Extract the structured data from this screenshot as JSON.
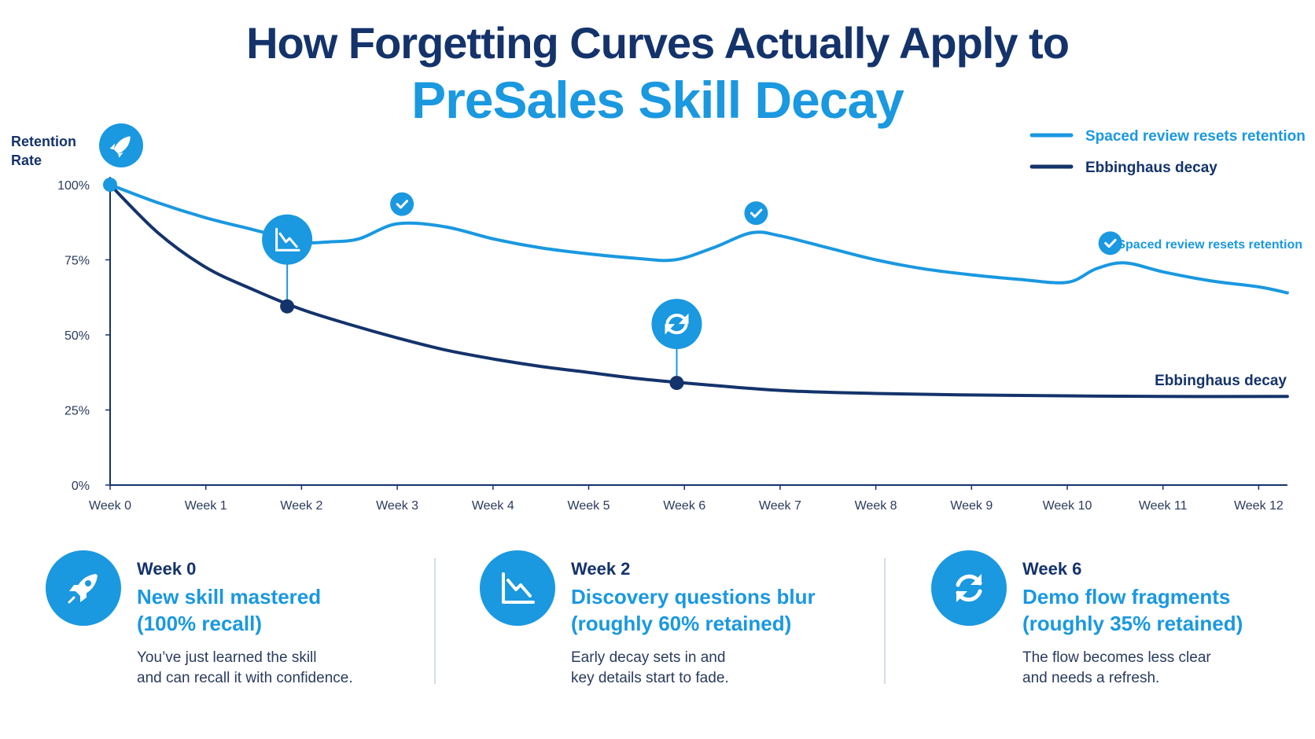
{
  "title": {
    "line1": "How Forgetting Curves Actually Apply to",
    "line2": "PreSales Skill Decay"
  },
  "colors": {
    "navy": "#14336b",
    "blue": "#1a98e0",
    "grid": "#d5dde8"
  },
  "chart_data": {
    "type": "line",
    "ylabel_line1": "Retention",
    "ylabel_line2": "Rate",
    "ylim": [
      0,
      100
    ],
    "y_ticks": [
      "100%",
      "75%",
      "50%",
      "25%",
      "0%"
    ],
    "y_tick_values": [
      100,
      75,
      50,
      25,
      0
    ],
    "categories": [
      "Week 0",
      "Week 1",
      "Week 2",
      "Week 3",
      "Week 4",
      "Week 5",
      "Week 6",
      "Week 7",
      "Week 8",
      "Week 9",
      "Week 10",
      "Week 11",
      "Week 12"
    ],
    "grid": false,
    "legend_position": "top-right",
    "series": [
      {
        "name": "Spaced review resets retention",
        "color": "#1a98e0",
        "points": [
          [
            0,
            100
          ],
          [
            0.5,
            94
          ],
          [
            1,
            89
          ],
          [
            1.5,
            85
          ],
          [
            2,
            81
          ],
          [
            2.3,
            81
          ],
          [
            2.6,
            82
          ],
          [
            3,
            87
          ],
          [
            3.5,
            86
          ],
          [
            4,
            82
          ],
          [
            4.5,
            79
          ],
          [
            5,
            77
          ],
          [
            5.5,
            75.5
          ],
          [
            5.9,
            75
          ],
          [
            6.3,
            79
          ],
          [
            6.7,
            84
          ],
          [
            7,
            83
          ],
          [
            7.5,
            79
          ],
          [
            8,
            75
          ],
          [
            8.5,
            72
          ],
          [
            9,
            70
          ],
          [
            9.5,
            68.5
          ],
          [
            10,
            67.5
          ],
          [
            10.3,
            72
          ],
          [
            10.6,
            74
          ],
          [
            11,
            71
          ],
          [
            11.5,
            68
          ],
          [
            12,
            66
          ],
          [
            12.3,
            64
          ]
        ]
      },
      {
        "name": "Ebbinghaus decay",
        "color": "#14336b",
        "points": [
          [
            0,
            100
          ],
          [
            0.5,
            84
          ],
          [
            1,
            72.5
          ],
          [
            1.5,
            65
          ],
          [
            2,
            58.5
          ],
          [
            2.5,
            53.5
          ],
          [
            3,
            49
          ],
          [
            3.5,
            45
          ],
          [
            4,
            42
          ],
          [
            4.5,
            39.5
          ],
          [
            5,
            37.5
          ],
          [
            5.5,
            35.5
          ],
          [
            6,
            34
          ],
          [
            7,
            31.5
          ],
          [
            8,
            30.5
          ],
          [
            9,
            30
          ],
          [
            10,
            29.7
          ],
          [
            11,
            29.5
          ],
          [
            12.3,
            29.5
          ]
        ]
      }
    ],
    "legend": [
      {
        "label": "Spaced review resets retention",
        "color": "#1a98e0"
      },
      {
        "label": "Ebbinghaus decay",
        "color": "#14336b"
      }
    ],
    "annotations": [
      {
        "text": "Spaced review resets retention",
        "series": 0
      },
      {
        "text": "Ebbinghaus decay",
        "series": 1
      }
    ],
    "review_checkpoints": [
      {
        "x": 3,
        "y": 87,
        "icon": "check-icon"
      },
      {
        "x": 6.7,
        "y": 84,
        "icon": "check-icon"
      },
      {
        "x": 10.4,
        "y": 74,
        "icon": "check-icon"
      }
    ],
    "milestones": [
      {
        "x": 0,
        "y": 100,
        "icon": "rocket-icon"
      },
      {
        "x": 1.85,
        "y": 59.5,
        "icon": "chart-down-icon"
      },
      {
        "x": 5.92,
        "y": 34,
        "icon": "refresh-icon"
      }
    ]
  },
  "cards": [
    {
      "week": "Week 0",
      "title_line1": "New skill mastered",
      "title_line2": "(100% recall)",
      "desc_line1": "You’ve just learned the skill",
      "desc_line2": "and can recall it with confidence.",
      "icon": "rocket-icon"
    },
    {
      "week": "Week 2",
      "title_line1": "Discovery questions blur",
      "title_line2": "(roughly 60% retained)",
      "desc_line1": "Early decay sets in and",
      "desc_line2": "key details start to fade.",
      "icon": "chart-down-icon"
    },
    {
      "week": "Week 6",
      "title_line1": "Demo flow fragments",
      "title_line2": "(roughly 35% retained)",
      "desc_line1": "The flow becomes less clear",
      "desc_line2": "and needs a refresh.",
      "icon": "refresh-icon"
    }
  ]
}
